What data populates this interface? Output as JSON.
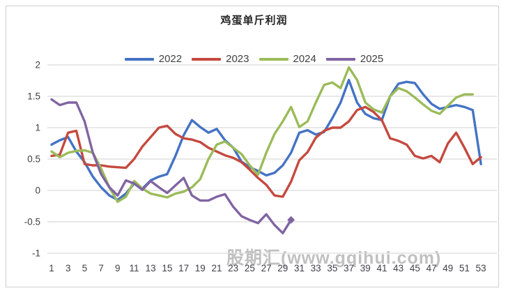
{
  "title": "鸡蛋单斤利润",
  "watermark": "股期汇(www.gqihui.com)",
  "chart_data": {
    "type": "line",
    "title": "鸡蛋单斤利润",
    "xlabel": "",
    "ylabel": "",
    "xlim": [
      1,
      53
    ],
    "ylim": [
      -1,
      2
    ],
    "grid": "horizontal",
    "legend_position": "top",
    "x_tick_labels": [
      1,
      3,
      5,
      7,
      9,
      11,
      13,
      15,
      17,
      19,
      21,
      23,
      25,
      27,
      29,
      31,
      33,
      35,
      37,
      39,
      41,
      43,
      45,
      47,
      49,
      51,
      53
    ],
    "y_ticks": [
      "2",
      "1.5",
      "1",
      "0.5",
      "0",
      "-0.5",
      "-1"
    ],
    "x_unit": "week",
    "series": [
      {
        "name": "2022",
        "color": "#4473c5",
        "start_week": 1,
        "values": [
          0.73,
          0.8,
          0.85,
          0.62,
          0.45,
          0.22,
          0.05,
          -0.08,
          -0.15,
          -0.05,
          0.11,
          0.03,
          0.16,
          0.22,
          0.26,
          0.55,
          0.88,
          1.12,
          1.01,
          0.92,
          0.98,
          0.8,
          0.68,
          0.46,
          0.37,
          0.31,
          0.24,
          0.28,
          0.4,
          0.6,
          0.92,
          0.96,
          0.89,
          0.93,
          1.15,
          1.4,
          1.76,
          1.4,
          1.22,
          1.15,
          1.12,
          1.5,
          1.7,
          1.73,
          1.71,
          1.53,
          1.38,
          1.3,
          1.33,
          1.36,
          1.33,
          1.28,
          0.42
        ]
      },
      {
        "name": "2023",
        "color": "#c5493f",
        "start_week": 1,
        "values": [
          0.55,
          0.57,
          0.92,
          0.95,
          0.42,
          0.4,
          0.4,
          0.38,
          0.37,
          0.36,
          0.5,
          0.7,
          0.85,
          1.0,
          1.03,
          0.9,
          0.83,
          0.81,
          0.77,
          0.68,
          0.62,
          0.56,
          0.52,
          0.45,
          0.33,
          0.2,
          0.09,
          -0.08,
          -0.1,
          0.14,
          0.48,
          0.61,
          0.84,
          0.95,
          1.0,
          1.0,
          1.1,
          1.28,
          1.33,
          1.25,
          1.12,
          0.83,
          0.79,
          0.73,
          0.55,
          0.51,
          0.55,
          0.45,
          0.75,
          0.92,
          0.68,
          0.42,
          0.53
        ]
      },
      {
        "name": "2024",
        "color": "#9bbb59",
        "start_week": 1,
        "values": [
          0.62,
          0.53,
          0.6,
          0.63,
          0.64,
          0.6,
          0.35,
          0.05,
          -0.18,
          -0.1,
          0.15,
          0.03,
          -0.05,
          -0.08,
          -0.11,
          -0.05,
          -0.02,
          0.05,
          0.18,
          0.5,
          0.73,
          0.78,
          0.68,
          0.58,
          0.4,
          0.25,
          0.6,
          0.9,
          1.1,
          1.33,
          1.01,
          1.1,
          1.4,
          1.68,
          1.72,
          1.63,
          1.96,
          1.76,
          1.4,
          1.29,
          1.24,
          1.5,
          1.63,
          1.58,
          1.48,
          1.37,
          1.27,
          1.22,
          1.35,
          1.48,
          1.53,
          1.53
        ]
      },
      {
        "name": "2025",
        "color": "#8064a2",
        "start_week": 1,
        "end_marker": "diamond",
        "values": [
          1.45,
          1.36,
          1.4,
          1.4,
          1.1,
          0.6,
          0.26,
          0.05,
          -0.08,
          0.16,
          0.11,
          0.01,
          0.15,
          0.05,
          -0.04,
          0.08,
          0.2,
          -0.08,
          -0.16,
          -0.16,
          -0.1,
          -0.06,
          -0.26,
          -0.41,
          -0.47,
          -0.52,
          -0.38,
          -0.55,
          -0.68,
          -0.47
        ]
      }
    ]
  }
}
